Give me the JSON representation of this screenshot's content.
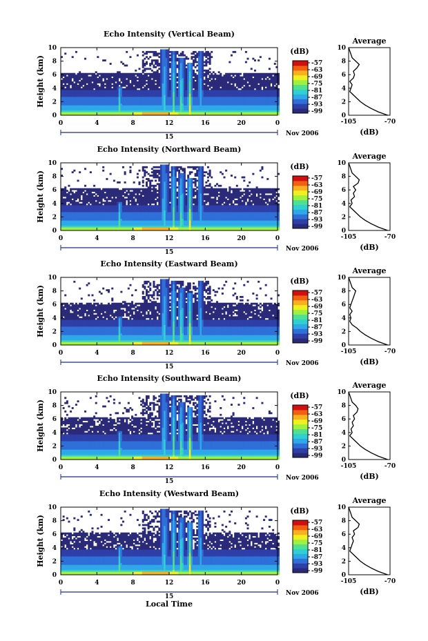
{
  "figure": {
    "x_axis_label": "Local Time",
    "date_label": "Nov 2006",
    "day_label": "15",
    "x_ticks": [
      "0",
      "4",
      "8",
      "12",
      "16",
      "20",
      "0"
    ],
    "y_label": "Height (km)",
    "y_ticks": [
      "0",
      "2",
      "4",
      "6",
      "8",
      "10"
    ],
    "colorbar_unit": "(dB)",
    "colorbar_ticks": [
      "-57",
      "-63",
      "-69",
      "-75",
      "-81",
      "-87",
      "-93",
      "-99"
    ],
    "avg_title": "Average",
    "avg_xlabel": "(dB)",
    "avg_x_ticks": [
      "-105",
      "-70"
    ],
    "avg_y_ticks": [
      "0",
      "2",
      "4",
      "6",
      "8",
      "10"
    ]
  },
  "chart_data": [
    {
      "type": "heatmap",
      "title": "Echo Intensity (Vertical Beam)",
      "xlabel": "",
      "ylabel": "Height (km)",
      "xlim": [
        0,
        24
      ],
      "ylim": [
        0,
        10
      ],
      "colorbar": {
        "unit": "(dB)",
        "range": [
          -99,
          -57
        ]
      },
      "average_profile": {
        "title": "Average",
        "xlabel": "(dB)",
        "xlim": [
          -105,
          -70
        ],
        "ylim": [
          0,
          10
        ],
        "height_km": [
          0,
          0.5,
          1,
          1.5,
          2,
          2.5,
          3,
          3.5,
          4,
          4.5,
          5,
          5.5,
          6,
          6.5,
          7,
          7.5,
          8,
          8.5,
          9,
          9.5,
          10
        ],
        "power_db": [
          -72,
          -80,
          -86,
          -91,
          -95,
          -98,
          -101,
          -104,
          -103,
          -102,
          -104,
          -101,
          -100,
          -101,
          -98,
          -96,
          -99,
          -102,
          -103,
          -104,
          -105
        ]
      }
    },
    {
      "type": "heatmap",
      "title": "Echo Intensity (Northward Beam)",
      "xlabel": "",
      "ylabel": "Height (km)",
      "xlim": [
        0,
        24
      ],
      "ylim": [
        0,
        10
      ],
      "colorbar": {
        "unit": "(dB)",
        "range": [
          -99,
          -57
        ]
      },
      "average_profile": {
        "title": "Average",
        "xlabel": "(dB)",
        "xlim": [
          -105,
          -70
        ],
        "ylim": [
          0,
          10
        ],
        "height_km": [
          0,
          0.5,
          1,
          1.5,
          2,
          2.5,
          3,
          3.5,
          4,
          4.5,
          5,
          5.5,
          6,
          6.5,
          7,
          7.5,
          8,
          8.5,
          9,
          9.5,
          10
        ],
        "power_db": [
          -72,
          -80,
          -86,
          -91,
          -95,
          -98,
          -101,
          -104,
          -102,
          -103,
          -100,
          -101,
          -99,
          -101,
          -97,
          -96,
          -99,
          -102,
          -103,
          -104,
          -105
        ]
      }
    },
    {
      "type": "heatmap",
      "title": "Echo Intensity (Eastward Beam)",
      "xlabel": "",
      "ylabel": "Height (km)",
      "xlim": [
        0,
        24
      ],
      "ylim": [
        0,
        10
      ],
      "colorbar": {
        "unit": "(dB)",
        "range": [
          -99,
          -57
        ]
      },
      "average_profile": {
        "title": "Average",
        "xlabel": "(dB)",
        "xlim": [
          -105,
          -70
        ],
        "ylim": [
          0,
          10
        ],
        "height_km": [
          0,
          0.5,
          1,
          1.5,
          2,
          2.5,
          3,
          3.5,
          4,
          4.5,
          5,
          5.5,
          6,
          6.5,
          7,
          7.5,
          8,
          8.5,
          9,
          9.5,
          10
        ],
        "power_db": [
          -72,
          -80,
          -86,
          -91,
          -95,
          -98,
          -102,
          -104,
          -103,
          -104,
          -102,
          -104,
          -103,
          -102,
          -101,
          -100,
          -99,
          -102,
          -103,
          -104,
          -105
        ]
      }
    },
    {
      "type": "heatmap",
      "title": "Echo Intensity (Southward Beam)",
      "xlabel": "",
      "ylabel": "Height (km)",
      "xlim": [
        0,
        24
      ],
      "ylim": [
        0,
        10
      ],
      "colorbar": {
        "unit": "(dB)",
        "range": [
          -99,
          -57
        ]
      },
      "average_profile": {
        "title": "Average",
        "xlabel": "(dB)",
        "xlim": [
          -105,
          -70
        ],
        "ylim": [
          0,
          10
        ],
        "height_km": [
          0,
          0.5,
          1,
          1.5,
          2,
          2.5,
          3,
          3.5,
          4,
          4.5,
          5,
          5.5,
          6,
          6.5,
          7,
          7.5,
          8,
          8.5,
          9,
          9.5,
          10
        ],
        "power_db": [
          -72,
          -80,
          -86,
          -91,
          -95,
          -98,
          -101,
          -104,
          -102,
          -103,
          -101,
          -102,
          -100,
          -101,
          -98,
          -97,
          -99,
          -102,
          -103,
          -104,
          -105
        ]
      }
    },
    {
      "type": "heatmap",
      "title": "Echo Intensity (Westward Beam)",
      "xlabel": "Local Time",
      "ylabel": "Height (km)",
      "xlim": [
        0,
        24
      ],
      "ylim": [
        0,
        10
      ],
      "colorbar": {
        "unit": "(dB)",
        "range": [
          -99,
          -57
        ]
      },
      "average_profile": {
        "title": "Average",
        "xlabel": "(dB)",
        "xlim": [
          -105,
          -70
        ],
        "ylim": [
          0,
          10
        ],
        "height_km": [
          0,
          0.5,
          1,
          1.5,
          2,
          2.5,
          3,
          3.5,
          4,
          4.5,
          5,
          5.5,
          6,
          6.5,
          7,
          7.5,
          8,
          8.5,
          9,
          9.5,
          10
        ],
        "power_db": [
          -72,
          -80,
          -86,
          -91,
          -95,
          -98,
          -101,
          -104,
          -103,
          -102,
          -101,
          -102,
          -100,
          -101,
          -97,
          -96,
          -99,
          -102,
          -103,
          -104,
          -105
        ]
      }
    }
  ],
  "colors": {
    "background": "#ffffff",
    "axis": "#000000",
    "colormap": [
      "#2a2a78",
      "#2f3fa8",
      "#2f6fd8",
      "#2fa8e8",
      "#30d0d0",
      "#50e090",
      "#a0f040",
      "#f0f020",
      "#f8b020",
      "#f06010",
      "#d01010"
    ]
  }
}
